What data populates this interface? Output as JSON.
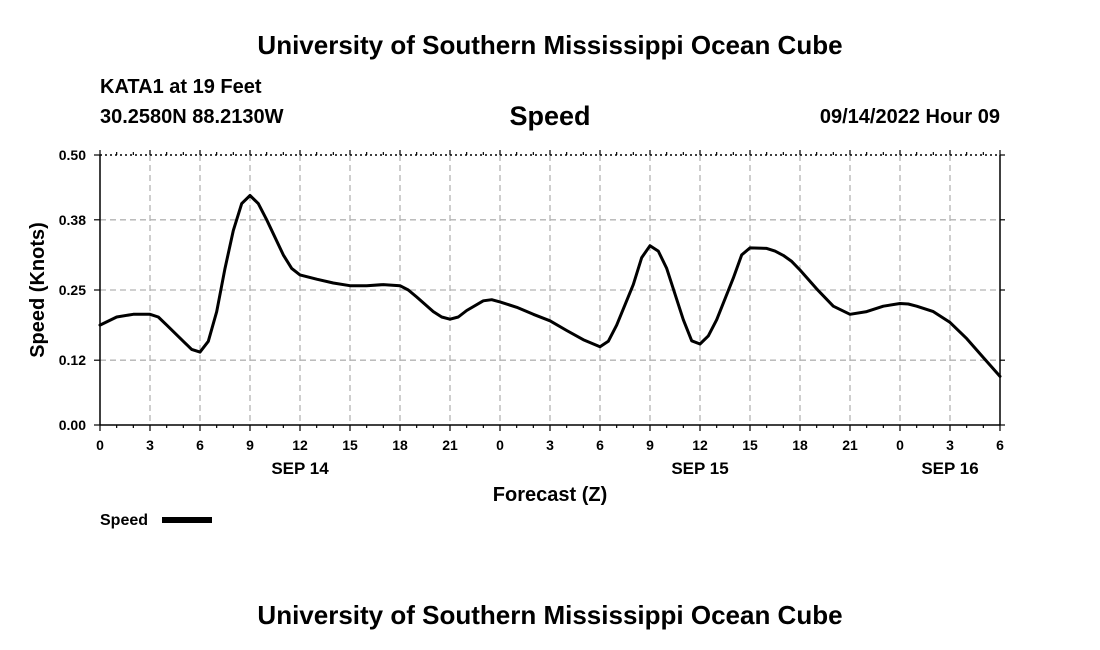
{
  "header": {
    "title": "University of Southern Mississippi Ocean Cube",
    "station": "KATA1 at 19 Feet",
    "coordinates": "30.2580N  88.2130W",
    "chart_title": "Speed",
    "datetime": "09/14/2022 Hour 09"
  },
  "footer": {
    "title": "University of Southern Mississippi Ocean Cube"
  },
  "chart_data": {
    "type": "line",
    "title": "Speed",
    "xlabel": "Forecast (Z)",
    "ylabel": "Speed (Knots)",
    "ylim": [
      0.0,
      0.5
    ],
    "yticks": [
      "0.00",
      "0.12",
      "0.25",
      "0.38",
      "0.50"
    ],
    "xlim": [
      0,
      54
    ],
    "xticks": [
      "0",
      "3",
      "6",
      "9",
      "12",
      "15",
      "18",
      "21",
      "0",
      "3",
      "6",
      "9",
      "12",
      "15",
      "18",
      "21",
      "0",
      "3",
      "6"
    ],
    "date_labels": [
      {
        "label": "SEP 14",
        "hour": 12
      },
      {
        "label": "SEP 15",
        "hour": 36
      },
      {
        "label": "SEP 16",
        "hour": 51
      }
    ],
    "grid": true,
    "line_color": "#000000",
    "legend": {
      "position": "bottom-left",
      "label": "Speed"
    },
    "series": [
      {
        "name": "Speed",
        "x": [
          0,
          1,
          2,
          3,
          3.5,
          4,
          5,
          5.5,
          6,
          6.5,
          7,
          7.5,
          8,
          8.5,
          9,
          9.5,
          10,
          11,
          11.5,
          12,
          13,
          14,
          15,
          16,
          17,
          18,
          18.5,
          19,
          20,
          20.5,
          21,
          21.5,
          22,
          23,
          23.5,
          24,
          25,
          26,
          27,
          28,
          29,
          30,
          30.5,
          31,
          32,
          32.5,
          33,
          33.5,
          34,
          35,
          35.5,
          36,
          36.5,
          37,
          38,
          38.5,
          39,
          40,
          40.5,
          41,
          41.5,
          42,
          43,
          44,
          45,
          46,
          47,
          48,
          48.5,
          49,
          50,
          51,
          52,
          53,
          54
        ],
        "y": [
          0.185,
          0.2,
          0.205,
          0.205,
          0.2,
          0.185,
          0.155,
          0.14,
          0.135,
          0.155,
          0.21,
          0.29,
          0.36,
          0.41,
          0.425,
          0.41,
          0.38,
          0.315,
          0.29,
          0.278,
          0.27,
          0.263,
          0.258,
          0.258,
          0.26,
          0.258,
          0.25,
          0.237,
          0.21,
          0.2,
          0.196,
          0.2,
          0.212,
          0.23,
          0.232,
          0.228,
          0.218,
          0.205,
          0.193,
          0.175,
          0.158,
          0.145,
          0.155,
          0.185,
          0.26,
          0.31,
          0.332,
          0.322,
          0.29,
          0.195,
          0.156,
          0.15,
          0.165,
          0.195,
          0.272,
          0.315,
          0.328,
          0.327,
          0.322,
          0.314,
          0.303,
          0.287,
          0.252,
          0.22,
          0.205,
          0.21,
          0.22,
          0.225,
          0.224,
          0.22,
          0.21,
          0.19,
          0.16,
          0.125,
          0.09
        ]
      }
    ]
  }
}
